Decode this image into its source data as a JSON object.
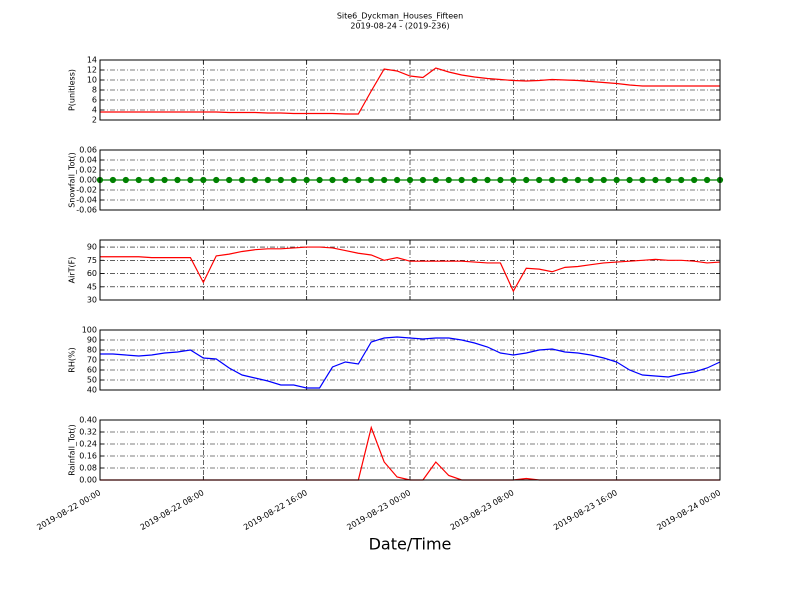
{
  "title": "Site6_Dyckman_Houses_Fifteen",
  "subtitle": "2019-08-24 - (2019-236)",
  "xlabel": "Date/Time",
  "chart_data": [
    {
      "type": "line",
      "ylabel": "P(unitless)",
      "color": "#ff0000",
      "grid": true,
      "markers": false,
      "xlim": [
        "2019-08-22 00:00",
        "2019-08-24 00:00"
      ],
      "xticks": [
        "2019-08-22 00:00",
        "2019-08-22 08:00",
        "2019-08-22 16:00",
        "2019-08-23 00:00",
        "2019-08-23 08:00",
        "2019-08-23 16:00",
        "2019-08-24 00:00"
      ],
      "ylim": [
        2,
        14
      ],
      "yticks": [
        2,
        4,
        6,
        8,
        10,
        12,
        14
      ],
      "x": [
        "2019-08-22 00:00",
        "2019-08-22 01:00",
        "2019-08-22 02:00",
        "2019-08-22 03:00",
        "2019-08-22 04:00",
        "2019-08-22 05:00",
        "2019-08-22 06:00",
        "2019-08-22 07:00",
        "2019-08-22 08:00",
        "2019-08-22 09:00",
        "2019-08-22 10:00",
        "2019-08-22 11:00",
        "2019-08-22 12:00",
        "2019-08-22 13:00",
        "2019-08-22 14:00",
        "2019-08-22 15:00",
        "2019-08-22 16:00",
        "2019-08-22 17:00",
        "2019-08-22 18:00",
        "2019-08-22 19:00",
        "2019-08-22 20:00",
        "2019-08-22 21:00",
        "2019-08-22 22:00",
        "2019-08-22 23:00",
        "2019-08-23 00:00",
        "2019-08-23 01:00",
        "2019-08-23 02:00",
        "2019-08-23 03:00",
        "2019-08-23 04:00",
        "2019-08-23 05:00",
        "2019-08-23 06:00",
        "2019-08-23 07:00",
        "2019-08-23 08:00",
        "2019-08-23 09:00",
        "2019-08-23 10:00",
        "2019-08-23 11:00",
        "2019-08-23 12:00",
        "2019-08-23 13:00",
        "2019-08-23 14:00",
        "2019-08-23 15:00",
        "2019-08-23 16:00",
        "2019-08-23 17:00",
        "2019-08-23 18:00",
        "2019-08-23 19:00",
        "2019-08-23 20:00",
        "2019-08-23 21:00",
        "2019-08-23 22:00",
        "2019-08-23 23:00",
        "2019-08-24 00:00"
      ],
      "values": [
        3.6,
        3.6,
        3.6,
        3.6,
        3.6,
        3.6,
        3.6,
        3.6,
        3.6,
        3.6,
        3.5,
        3.5,
        3.5,
        3.4,
        3.4,
        3.3,
        3.3,
        3.3,
        3.3,
        3.2,
        3.2,
        7.8,
        12.2,
        11.8,
        10.8,
        10.5,
        12.4,
        11.6,
        11.0,
        10.6,
        10.3,
        10.1,
        9.9,
        9.8,
        9.9,
        10.1,
        10.0,
        9.9,
        9.7,
        9.5,
        9.3,
        9.0,
        8.8,
        8.8,
        8.8,
        8.8,
        8.8,
        8.8,
        8.8
      ]
    },
    {
      "type": "line",
      "ylabel": "Snowfall_Tot()",
      "color": "#008000",
      "grid": true,
      "markers": true,
      "xlim": [
        "2019-08-22 00:00",
        "2019-08-24 00:00"
      ],
      "xticks": [
        "2019-08-22 00:00",
        "2019-08-22 08:00",
        "2019-08-22 16:00",
        "2019-08-23 00:00",
        "2019-08-23 08:00",
        "2019-08-23 16:00",
        "2019-08-24 00:00"
      ],
      "ylim": [
        -0.06,
        0.06
      ],
      "yticks": [
        -0.06,
        -0.04,
        -0.02,
        {
          "value": 0,
          "label": "0.00"
        },
        0.02,
        0.04,
        0.06
      ],
      "x": [
        "2019-08-22 00:00",
        "2019-08-22 01:00",
        "2019-08-22 02:00",
        "2019-08-22 03:00",
        "2019-08-22 04:00",
        "2019-08-22 05:00",
        "2019-08-22 06:00",
        "2019-08-22 07:00",
        "2019-08-22 08:00",
        "2019-08-22 09:00",
        "2019-08-22 10:00",
        "2019-08-22 11:00",
        "2019-08-22 12:00",
        "2019-08-22 13:00",
        "2019-08-22 14:00",
        "2019-08-22 15:00",
        "2019-08-22 16:00",
        "2019-08-22 17:00",
        "2019-08-22 18:00",
        "2019-08-22 19:00",
        "2019-08-22 20:00",
        "2019-08-22 21:00",
        "2019-08-22 22:00",
        "2019-08-22 23:00",
        "2019-08-23 00:00",
        "2019-08-23 01:00",
        "2019-08-23 02:00",
        "2019-08-23 03:00",
        "2019-08-23 04:00",
        "2019-08-23 05:00",
        "2019-08-23 06:00",
        "2019-08-23 07:00",
        "2019-08-23 08:00",
        "2019-08-23 09:00",
        "2019-08-23 10:00",
        "2019-08-23 11:00",
        "2019-08-23 12:00",
        "2019-08-23 13:00",
        "2019-08-23 14:00",
        "2019-08-23 15:00",
        "2019-08-23 16:00",
        "2019-08-23 17:00",
        "2019-08-23 18:00",
        "2019-08-23 19:00",
        "2019-08-23 20:00",
        "2019-08-23 21:00",
        "2019-08-23 22:00",
        "2019-08-23 23:00",
        "2019-08-24 00:00"
      ],
      "values": [
        0,
        0,
        0,
        0,
        0,
        0,
        0,
        0,
        0,
        0,
        0,
        0,
        0,
        0,
        0,
        0,
        0,
        0,
        0,
        0,
        0,
        0,
        0,
        0,
        0,
        0,
        0,
        0,
        0,
        0,
        0,
        0,
        0,
        0,
        0,
        0,
        0,
        0,
        0,
        0,
        0,
        0,
        0,
        0,
        0,
        0,
        0,
        0,
        0
      ]
    },
    {
      "type": "line",
      "ylabel": "AirT(F)",
      "color": "#ff0000",
      "grid": true,
      "markers": false,
      "xlim": [
        "2019-08-22 00:00",
        "2019-08-24 00:00"
      ],
      "xticks": [
        "2019-08-22 00:00",
        "2019-08-22 08:00",
        "2019-08-22 16:00",
        "2019-08-23 00:00",
        "2019-08-23 08:00",
        "2019-08-23 16:00",
        "2019-08-24 00:00"
      ],
      "ylim": [
        30,
        98
      ],
      "yticks": [
        30,
        45,
        60,
        75,
        90
      ],
      "x": [
        "2019-08-22 00:00",
        "2019-08-22 01:00",
        "2019-08-22 02:00",
        "2019-08-22 03:00",
        "2019-08-22 04:00",
        "2019-08-22 05:00",
        "2019-08-22 06:00",
        "2019-08-22 07:00",
        "2019-08-22 08:00",
        "2019-08-22 09:00",
        "2019-08-22 10:00",
        "2019-08-22 11:00",
        "2019-08-22 12:00",
        "2019-08-22 13:00",
        "2019-08-22 14:00",
        "2019-08-22 15:00",
        "2019-08-22 16:00",
        "2019-08-22 17:00",
        "2019-08-22 18:00",
        "2019-08-22 19:00",
        "2019-08-22 20:00",
        "2019-08-22 21:00",
        "2019-08-22 22:00",
        "2019-08-22 23:00",
        "2019-08-23 00:00",
        "2019-08-23 01:00",
        "2019-08-23 02:00",
        "2019-08-23 03:00",
        "2019-08-23 04:00",
        "2019-08-23 05:00",
        "2019-08-23 06:00",
        "2019-08-23 07:00",
        "2019-08-23 08:00",
        "2019-08-23 09:00",
        "2019-08-23 10:00",
        "2019-08-23 11:00",
        "2019-08-23 12:00",
        "2019-08-23 13:00",
        "2019-08-23 14:00",
        "2019-08-23 15:00",
        "2019-08-23 16:00",
        "2019-08-23 17:00",
        "2019-08-23 18:00",
        "2019-08-23 19:00",
        "2019-08-23 20:00",
        "2019-08-23 21:00",
        "2019-08-23 22:00",
        "2019-08-23 23:00",
        "2019-08-24 00:00"
      ],
      "values": [
        79,
        79,
        79,
        79,
        78,
        78,
        78,
        78,
        50,
        80,
        82,
        85,
        87,
        88,
        88,
        89,
        90,
        90,
        89,
        86,
        83,
        81,
        75,
        78,
        74,
        74,
        74,
        74,
        74,
        73,
        72,
        72,
        40,
        66,
        65,
        62,
        67,
        68,
        70,
        72,
        73,
        74,
        75,
        76,
        75,
        75,
        74,
        72,
        73
      ]
    },
    {
      "type": "line",
      "ylabel": "RH(%)",
      "color": "#0000ff",
      "grid": true,
      "markers": false,
      "xlim": [
        "2019-08-22 00:00",
        "2019-08-24 00:00"
      ],
      "xticks": [
        "2019-08-22 00:00",
        "2019-08-22 08:00",
        "2019-08-22 16:00",
        "2019-08-23 00:00",
        "2019-08-23 08:00",
        "2019-08-23 16:00",
        "2019-08-24 00:00"
      ],
      "ylim": [
        40,
        100
      ],
      "yticks": [
        40,
        50,
        60,
        70,
        80,
        90,
        100
      ],
      "x": [
        "2019-08-22 00:00",
        "2019-08-22 01:00",
        "2019-08-22 02:00",
        "2019-08-22 03:00",
        "2019-08-22 04:00",
        "2019-08-22 05:00",
        "2019-08-22 06:00",
        "2019-08-22 07:00",
        "2019-08-22 08:00",
        "2019-08-22 09:00",
        "2019-08-22 10:00",
        "2019-08-22 11:00",
        "2019-08-22 12:00",
        "2019-08-22 13:00",
        "2019-08-22 14:00",
        "2019-08-22 15:00",
        "2019-08-22 16:00",
        "2019-08-22 17:00",
        "2019-08-22 18:00",
        "2019-08-22 19:00",
        "2019-08-22 20:00",
        "2019-08-22 21:00",
        "2019-08-22 22:00",
        "2019-08-22 23:00",
        "2019-08-23 00:00",
        "2019-08-23 01:00",
        "2019-08-23 02:00",
        "2019-08-23 03:00",
        "2019-08-23 04:00",
        "2019-08-23 05:00",
        "2019-08-23 06:00",
        "2019-08-23 07:00",
        "2019-08-23 08:00",
        "2019-08-23 09:00",
        "2019-08-23 10:00",
        "2019-08-23 11:00",
        "2019-08-23 12:00",
        "2019-08-23 13:00",
        "2019-08-23 14:00",
        "2019-08-23 15:00",
        "2019-08-23 16:00",
        "2019-08-23 17:00",
        "2019-08-23 18:00",
        "2019-08-23 19:00",
        "2019-08-23 20:00",
        "2019-08-23 21:00",
        "2019-08-23 22:00",
        "2019-08-23 23:00",
        "2019-08-24 00:00"
      ],
      "values": [
        76,
        76,
        75,
        74,
        75,
        77,
        78,
        80,
        72,
        71,
        62,
        55,
        52,
        49,
        45,
        45,
        42,
        42,
        63,
        68,
        66,
        88,
        92,
        93,
        92,
        91,
        92,
        92,
        90,
        87,
        83,
        77,
        75,
        77,
        80,
        81,
        78,
        77,
        75,
        72,
        68,
        60,
        55,
        54,
        53,
        56,
        58,
        62,
        68
      ]
    },
    {
      "type": "line",
      "ylabel": "Rainfall_Tot()",
      "color": "#ff0000",
      "grid": true,
      "markers": false,
      "xlim": [
        "2019-08-22 00:00",
        "2019-08-24 00:00"
      ],
      "xticks": [
        "2019-08-22 00:00",
        "2019-08-22 08:00",
        "2019-08-22 16:00",
        "2019-08-23 00:00",
        "2019-08-23 08:00",
        "2019-08-23 16:00",
        "2019-08-24 00:00"
      ],
      "ylim": [
        0,
        0.4
      ],
      "yticks": [
        {
          "value": 0,
          "label": "0.00"
        },
        0.08,
        0.16,
        0.24,
        0.32,
        {
          "value": 0.4,
          "label": "0.40"
        }
      ],
      "x": [
        "2019-08-22 00:00",
        "2019-08-22 01:00",
        "2019-08-22 02:00",
        "2019-08-22 03:00",
        "2019-08-22 04:00",
        "2019-08-22 05:00",
        "2019-08-22 06:00",
        "2019-08-22 07:00",
        "2019-08-22 08:00",
        "2019-08-22 09:00",
        "2019-08-22 10:00",
        "2019-08-22 11:00",
        "2019-08-22 12:00",
        "2019-08-22 13:00",
        "2019-08-22 14:00",
        "2019-08-22 15:00",
        "2019-08-22 16:00",
        "2019-08-22 17:00",
        "2019-08-22 18:00",
        "2019-08-22 19:00",
        "2019-08-22 20:00",
        "2019-08-22 21:00",
        "2019-08-22 22:00",
        "2019-08-22 23:00",
        "2019-08-23 00:00",
        "2019-08-23 01:00",
        "2019-08-23 02:00",
        "2019-08-23 03:00",
        "2019-08-23 04:00",
        "2019-08-23 05:00",
        "2019-08-23 06:00",
        "2019-08-23 07:00",
        "2019-08-23 08:00",
        "2019-08-23 09:00",
        "2019-08-23 10:00",
        "2019-08-23 11:00",
        "2019-08-23 12:00",
        "2019-08-23 13:00",
        "2019-08-23 14:00",
        "2019-08-23 15:00",
        "2019-08-23 16:00",
        "2019-08-23 17:00",
        "2019-08-23 18:00",
        "2019-08-23 19:00",
        "2019-08-23 20:00",
        "2019-08-23 21:00",
        "2019-08-23 22:00",
        "2019-08-23 23:00",
        "2019-08-24 00:00"
      ],
      "values": [
        0,
        0,
        0,
        0,
        0,
        0,
        0,
        0,
        0,
        0,
        0,
        0,
        0,
        0,
        0,
        0,
        0,
        0,
        0,
        0,
        0,
        0.35,
        0.12,
        0.02,
        0,
        0,
        0.12,
        0.03,
        0,
        0,
        0,
        0,
        0,
        0.01,
        0,
        0,
        0,
        0,
        0,
        0,
        0,
        0,
        0,
        0,
        0,
        0,
        0,
        0,
        0
      ]
    }
  ]
}
